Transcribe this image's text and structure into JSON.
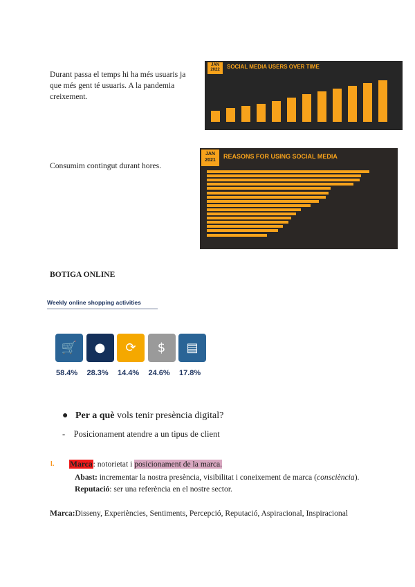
{
  "intro": {
    "lines": [
      "Durant passa el temps hi ha més usuaris ja",
      "que més gent té usuaris. A la pandemia",
      "creixement."
    ]
  },
  "chart1": {
    "badge": "JAN 2022",
    "title": "SOCIAL MEDIA USERS OVER TIME"
  },
  "consum": "Consumim contingut durant hores.",
  "chart2": {
    "badge": "JAN 2021",
    "title": "REASONS FOR USING SOCIAL MEDIA"
  },
  "botiga": "BOTIGA ONLINE",
  "shopping": {
    "title": "Weekly online shopping activities",
    "items": [
      {
        "icon": "cart-icon",
        "value": "58.4%",
        "color": "#2a6496"
      },
      {
        "icon": "pear-icon",
        "value": "28.3%",
        "color": "#14305a"
      },
      {
        "icon": "refresh-icon",
        "value": "14.4%",
        "color": "#f5a800"
      },
      {
        "icon": "dollar-cycle-icon",
        "value": "24.6%",
        "color": "#9a9a9a"
      },
      {
        "icon": "calendar-payment-icon",
        "value": "17.8%",
        "color": "#2a6496"
      }
    ]
  },
  "bullet": {
    "bold": "Per a què",
    "rest": " vols tenir presència digital?"
  },
  "dash": "Posicionament atendre a un tipus de client",
  "item1": {
    "num": "I.",
    "marca": "Marca",
    "sep": ": notorietat i ",
    "highlight": "posicionament de la marca."
  },
  "abast": {
    "label": "Abast:",
    "text": " incrementar la nostra presència, visibilitat i coneixement de marca (",
    "italic": "consciència",
    "end": ")."
  },
  "reputacio": {
    "label": "Reputació",
    "text": ": ser una referència en el nostre sector."
  },
  "marca_line": {
    "label": "Marca:",
    "text": "Disseny, Experiències, Sentiments, Percepció, Reputació, Aspiracional, Inspiracional"
  },
  "colors": {
    "accent": "#f7a21b",
    "marca_bg": "#ee1c1c",
    "highlight_bg": "#d8a7c0",
    "num": "#f7941d"
  }
}
